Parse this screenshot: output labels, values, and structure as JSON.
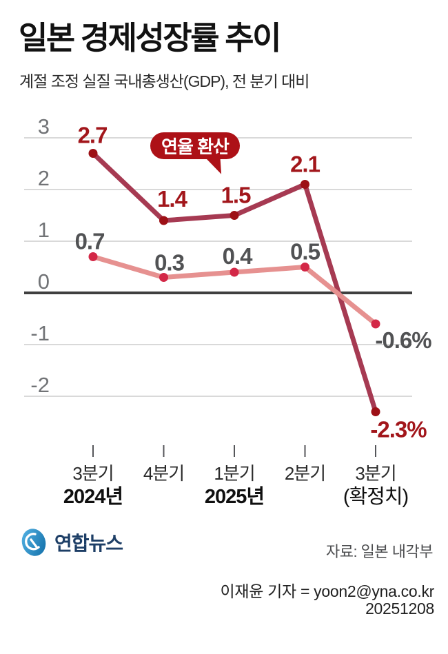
{
  "header": {
    "title": "일본 경제성장률 추이",
    "subtitle": "계절 조정 실질 국내총생산(GDP), 전 분기 대비"
  },
  "annotation": {
    "label": "연율 환산",
    "bg_color": "#ad1117"
  },
  "chart_data": {
    "type": "line",
    "unit": "%",
    "categories": [
      "3분기",
      "4분기",
      "1분기",
      "2분기",
      "3분기"
    ],
    "category_year_labels": [
      "2024년",
      "",
      "2025년",
      "",
      "(확정치)"
    ],
    "yticks": [
      3,
      2,
      1,
      0,
      -1,
      -2
    ],
    "ylim": [
      -2.7,
      3.3
    ],
    "grid": true,
    "zero_line": true,
    "legend_position": "none",
    "series": [
      {
        "name": "연율 환산",
        "values": [
          2.7,
          1.4,
          1.5,
          2.1,
          -2.3
        ],
        "point_labels": [
          "2.7",
          "1.4",
          "1.5",
          "2.1",
          "-2.3%"
        ],
        "line_color": "#a63a52",
        "marker_color": "#9d1016",
        "label_color": "#a2161b"
      },
      {
        "name": "전 분기 대비",
        "values": [
          0.7,
          0.3,
          0.4,
          0.5,
          -0.6
        ],
        "point_labels": [
          "0.7",
          "0.3",
          "0.4",
          "0.5",
          "-0.6%"
        ],
        "line_color": "#e69190",
        "marker_color": "#d32847",
        "label_color": "#515254"
      }
    ]
  },
  "footer": {
    "logo_text": "연합뉴스",
    "source": "자료: 일본 내각부",
    "byline": "이재윤 기자 = yoon2@yna.co.kr",
    "date": "20251208"
  }
}
